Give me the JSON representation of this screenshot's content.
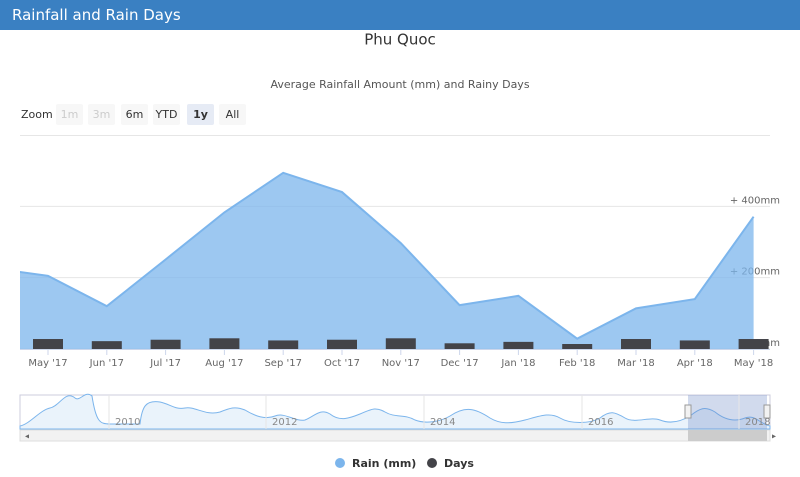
{
  "header": {
    "title": "Rainfall and Rain Days"
  },
  "chart_data": {
    "type": "area",
    "title": "Phu Quoc",
    "subtitle": "Average Rainfall Amount (mm) and Rainy Days",
    "zoom": {
      "label": "Zoom",
      "buttons": [
        "1m",
        "3m",
        "6m",
        "YTD",
        "1y",
        "All"
      ],
      "selected": "1y",
      "disabled": [
        "1m",
        "3m"
      ]
    },
    "categories": [
      null,
      "May '17",
      "Jun '17",
      "Jul '17",
      "Aug '17",
      "Sep '17",
      "Oct '17",
      "Nov '17",
      "Dec '17",
      "Jan '18",
      "Feb '18",
      "Mar '18",
      "Apr '18",
      "May '18"
    ],
    "series": [
      {
        "name": "Rain (mm)",
        "type": "area",
        "color": "#7cb5ec",
        "values": [
          228,
          205,
          120,
          251,
          383,
          494,
          440,
          297,
          123,
          149,
          29,
          114,
          140,
          371
        ]
      },
      {
        "name": "Days",
        "type": "bar",
        "axis": "y2",
        "color": "#434348",
        "values": [
          null,
          14,
          11,
          13,
          15,
          12,
          13,
          15,
          8,
          10,
          7,
          14,
          12,
          14
        ]
      }
    ],
    "ylim": [
      0,
      600
    ],
    "yticks": [
      {
        "value": 0,
        "label": "0mm"
      },
      {
        "value": 200,
        "label": "+ 200mm"
      },
      {
        "value": 400,
        "label": "+ 400mm"
      }
    ],
    "y2lim": [
      0,
      300
    ],
    "grid": true,
    "navigator": {
      "labels": [
        "2010",
        "2012",
        "2014",
        "2016",
        "2018"
      ]
    },
    "legend": "bottom"
  }
}
